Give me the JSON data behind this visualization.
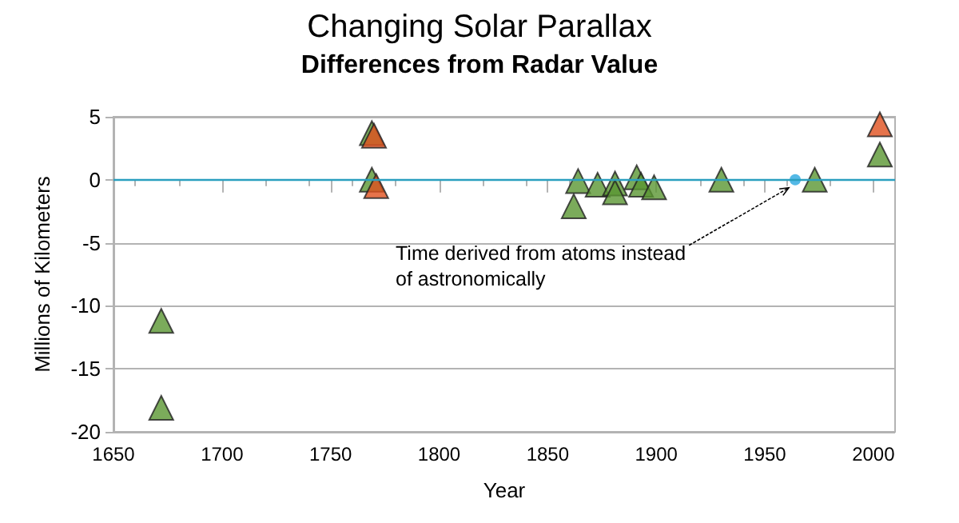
{
  "chart_data": {
    "type": "scatter",
    "title": "Changing Solar Parallax",
    "subtitle": "Differences from Radar Value",
    "xlabel": "Year",
    "ylabel": "Millions of Kilometers",
    "xlim": [
      1650,
      2010
    ],
    "xticks": [
      1650,
      1700,
      1750,
      1800,
      1850,
      1900,
      1950,
      2000
    ],
    "ylim": [
      -20,
      5
    ],
    "yticks": [
      -20,
      -15,
      -10,
      -5,
      0,
      5
    ],
    "grid": "y",
    "marker": "triangle",
    "series": [
      {
        "color": "#5a9632",
        "x": [
          1672,
          1672,
          1769,
          1769,
          1862,
          1864,
          1873,
          1881,
          1881,
          1891,
          1893,
          1899,
          1930,
          1973,
          2003
        ],
        "values": [
          -11.2,
          -18.1,
          3.7,
          0,
          -2.1,
          -0.1,
          -0.4,
          -0.3,
          -1.0,
          0.2,
          -0.4,
          -0.6,
          0,
          0,
          2.0
        ]
      },
      {
        "color": "#e0501e",
        "x": [
          1770,
          1771,
          2003
        ],
        "values": [
          3.5,
          -0.5,
          4.4
        ]
      },
      {
        "color": "#29a8e0",
        "marker": "circle",
        "x": [
          1964
        ],
        "values": [
          0
        ]
      }
    ],
    "ref_lines": [
      {
        "axis": "y",
        "value": 0,
        "color": "#2a9fbf"
      }
    ],
    "annotations": [
      {
        "text": "Time derived from atoms instead\nof astronomically",
        "x": 1964,
        "y": 0
      }
    ]
  }
}
